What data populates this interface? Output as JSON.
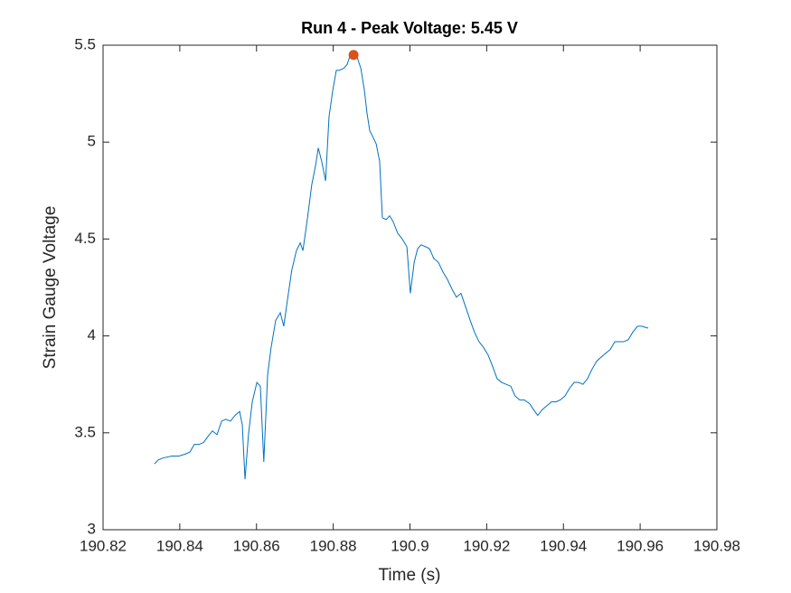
{
  "chart_data": {
    "type": "line",
    "title": "Run 4 - Peak Voltage: 5.45 V",
    "xlabel": "Time (s)",
    "ylabel": "Strain Gauge Voltage",
    "xlim": [
      190.82,
      190.98
    ],
    "ylim": [
      3,
      5.5
    ],
    "xticks": [
      190.82,
      190.84,
      190.86,
      190.88,
      190.9,
      190.92,
      190.94,
      190.96,
      190.98
    ],
    "yticks": [
      3,
      3.5,
      4,
      4.5,
      5,
      5.5
    ],
    "series": [
      {
        "color": "#0072BD",
        "x": [
          190.8334,
          190.8344,
          190.8356,
          190.8379,
          190.8398,
          190.8414,
          190.8426,
          190.8438,
          190.845,
          190.8462,
          190.8473,
          190.8485,
          190.8497,
          190.8509,
          190.852,
          190.8532,
          190.8544,
          190.8556,
          190.8563,
          190.857,
          190.8579,
          190.8589,
          190.8601,
          190.861,
          190.8619,
          190.8629,
          190.8638,
          190.865,
          190.8662,
          190.8671,
          190.8681,
          190.8692,
          190.8704,
          190.8714,
          190.8721,
          190.8733,
          190.8744,
          190.8754,
          190.8761,
          190.877,
          190.878,
          190.8789,
          190.8799,
          190.8808,
          190.8815,
          190.8827,
          190.8836,
          190.8843,
          190.8853,
          190.8862,
          190.8872,
          190.8881,
          190.8888,
          190.8895,
          190.8905,
          190.8912,
          190.8921,
          190.8928,
          190.8938,
          190.8947,
          190.8956,
          190.8968,
          190.898,
          190.8992,
          190.9001,
          190.9011,
          190.902,
          190.9029,
          190.9041,
          190.9051,
          190.9062,
          190.9074,
          190.9086,
          190.9098,
          190.911,
          190.9121,
          190.9133,
          190.9145,
          190.9157,
          190.9168,
          190.918,
          190.9192,
          190.9204,
          190.9216,
          190.9227,
          190.9239,
          190.9251,
          190.9263,
          190.9274,
          190.9286,
          190.9298,
          190.9312,
          190.9322,
          190.9333,
          190.9345,
          190.9357,
          190.9369,
          190.9381,
          190.9392,
          190.9404,
          190.9416,
          190.9428,
          190.9439,
          190.9451,
          190.9463,
          190.9475,
          190.9487,
          190.9498,
          190.951,
          190.9522,
          190.9534,
          190.9545,
          190.9557,
          190.9569,
          190.9581,
          190.9593,
          190.9604,
          190.9621
        ],
        "values": [
          3.34,
          3.36,
          3.37,
          3.38,
          3.38,
          3.39,
          3.4,
          3.44,
          3.44,
          3.45,
          3.48,
          3.51,
          3.49,
          3.56,
          3.57,
          3.56,
          3.59,
          3.61,
          3.54,
          3.26,
          3.49,
          3.66,
          3.76,
          3.74,
          3.35,
          3.8,
          3.94,
          4.08,
          4.12,
          4.05,
          4.19,
          4.34,
          4.44,
          4.48,
          4.44,
          4.61,
          4.78,
          4.88,
          4.97,
          4.9,
          4.8,
          5.13,
          5.27,
          5.37,
          5.37,
          5.38,
          5.4,
          5.44,
          5.45,
          5.44,
          5.38,
          5.27,
          5.15,
          5.06,
          5.02,
          4.99,
          4.9,
          4.61,
          4.6,
          4.62,
          4.59,
          4.53,
          4.5,
          4.46,
          4.22,
          4.38,
          4.45,
          4.47,
          4.46,
          4.45,
          4.4,
          4.38,
          4.33,
          4.29,
          4.24,
          4.2,
          4.22,
          4.15,
          4.08,
          4.02,
          3.97,
          3.94,
          3.9,
          3.84,
          3.78,
          3.76,
          3.75,
          3.74,
          3.69,
          3.67,
          3.67,
          3.65,
          3.62,
          3.59,
          3.62,
          3.64,
          3.66,
          3.66,
          3.67,
          3.69,
          3.73,
          3.76,
          3.76,
          3.75,
          3.78,
          3.83,
          3.87,
          3.89,
          3.91,
          3.93,
          3.97,
          3.97,
          3.97,
          3.98,
          4.02,
          4.05,
          4.05,
          4.04
        ]
      }
    ],
    "peak": {
      "x": 190.8853,
      "y": 5.45,
      "color": "#D95319"
    }
  }
}
